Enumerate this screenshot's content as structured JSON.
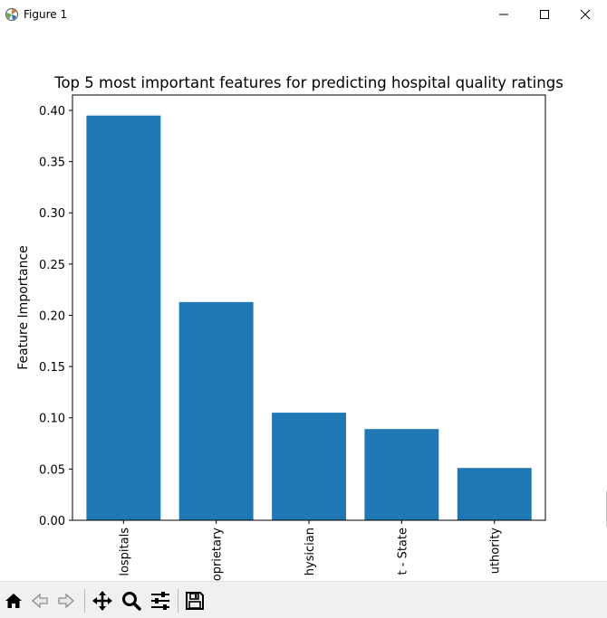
{
  "window": {
    "title": "Figure 1"
  },
  "toolbar": {
    "buttons": [
      {
        "name": "home-icon"
      },
      {
        "name": "back-arrow-icon"
      },
      {
        "name": "forward-arrow-icon"
      },
      {
        "name": "pan-icon"
      },
      {
        "name": "zoom-icon"
      },
      {
        "name": "configure-subplots-icon"
      },
      {
        "name": "save-icon"
      }
    ]
  },
  "chart_data": {
    "type": "bar",
    "title": "Top 5 most important features for predicting hospital quality ratings",
    "xlabel": "",
    "ylabel": "Feature Importance",
    "categories": [
      "lospitals",
      "oprietary",
      "hysician",
      "t - State",
      "uthority"
    ],
    "values": [
      0.395,
      0.213,
      0.105,
      0.089,
      0.051
    ],
    "ylim": [
      0,
      0.415
    ],
    "yticks": [
      "0.00",
      "0.05",
      "0.10",
      "0.15",
      "0.20",
      "0.25",
      "0.30",
      "0.35",
      "0.40"
    ],
    "ytick_values": [
      0,
      0.05,
      0.1,
      0.15,
      0.2,
      0.25,
      0.3,
      0.35,
      0.4
    ],
    "bar_color": "#1f77b4",
    "grid": false
  }
}
